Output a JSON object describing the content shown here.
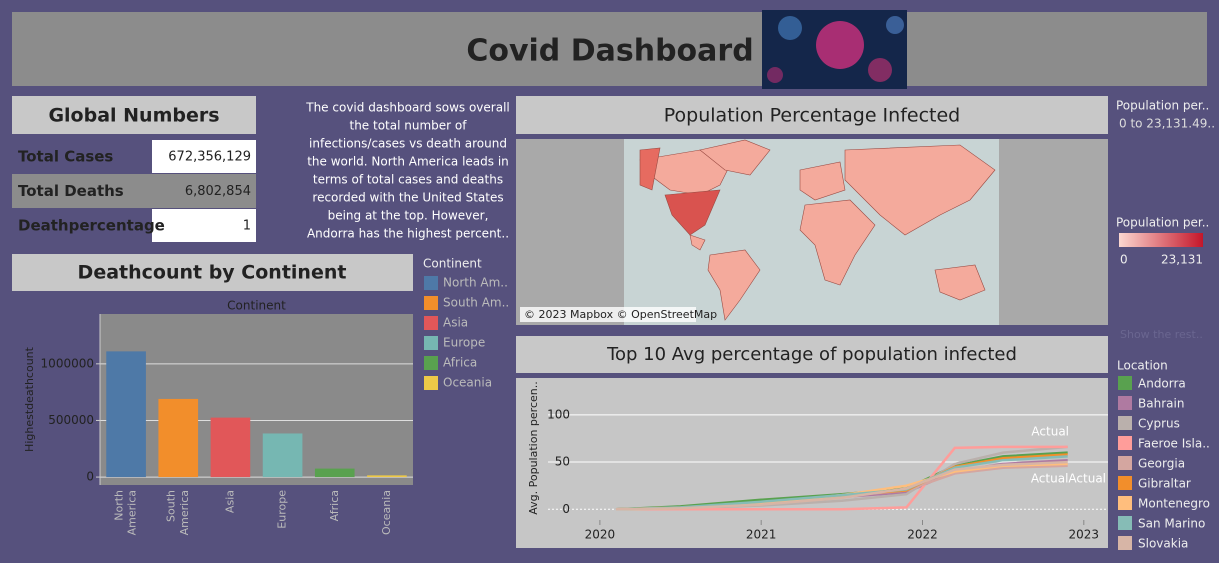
{
  "header": {
    "title": "Covid Dashboard"
  },
  "global_numbers": {
    "title": "Global Numbers",
    "rows": [
      [
        "Total Cases",
        "672,356,129"
      ],
      [
        "Total Deaths",
        "6,802,854"
      ],
      [
        "Deathpercentage",
        "1"
      ]
    ]
  },
  "description": [
    "The covid dashboard sows overall",
    "the total number of",
    "infections/cases vs death around",
    "the world. North America leads in",
    "terms of total cases and deaths",
    "recorded with the United States",
    "being at the top. However,",
    "Andorra has the highest percent.."
  ],
  "map": {
    "title": "Population Percentage Infected",
    "attribution": "© 2023 Mapbox © OpenStreetMap",
    "size_title": "Population per..",
    "size_range": "0 to 23,131.49..",
    "color_title": "Population per..",
    "color_min": "0",
    "color_max": "23,131",
    "more": "Show the rest.."
  },
  "chart_data": [
    {
      "type": "bar",
      "title": "Deathcount by Continent",
      "header": "Continent",
      "ylabel": "Highestdeathcount",
      "categories": [
        "North America",
        "South America",
        "Asia",
        "Europe",
        "Africa",
        "Oceania"
      ],
      "values": [
        1110000,
        690000,
        525000,
        385000,
        75000,
        15000
      ],
      "colors": [
        "#4e79a7",
        "#f28e2b",
        "#e15759",
        "#76b7b2",
        "#59a14f",
        "#edc948"
      ],
      "ylim": [
        -70000,
        1440000
      ],
      "yticks": [
        0,
        500000,
        1000000
      ],
      "grid": true,
      "legend": {
        "title": "Continent",
        "labels": [
          "North Am..",
          "South Am..",
          "Asia",
          "Europe",
          "Africa",
          "Oceania"
        ]
      }
    },
    {
      "type": "line",
      "title": "Top 10 Avg  percentage of population infected",
      "ylabel": "Avg. Population percen..",
      "x": [
        2020.1,
        2020.5,
        2021.0,
        2021.5,
        2021.9,
        2022.2,
        2022.5,
        2022.9
      ],
      "xlim": [
        2019.48,
        2023.15
      ],
      "xticks": [
        2020,
        2021,
        2022,
        2023
      ],
      "ylim": [
        -41,
        139
      ],
      "yticks": [
        0,
        50,
        100
      ],
      "grid": true,
      "annotations": [
        "Actual",
        "ActualActual"
      ],
      "legend_title": "Location",
      "series": [
        {
          "name": "Andorra",
          "color": "#59a14f",
          "values": [
            0,
            3,
            10,
            16,
            22,
            46,
            56,
            60
          ]
        },
        {
          "name": "Bahrain",
          "color": "#af7aa1",
          "values": [
            0,
            1,
            5,
            13,
            18,
            40,
            48,
            52
          ]
        },
        {
          "name": "Cyprus",
          "color": "#bab0ac",
          "values": [
            0,
            1,
            4,
            9,
            16,
            48,
            60,
            66
          ]
        },
        {
          "name": "Faeroe Isla..",
          "color": "#ff9d9a",
          "values": [
            0,
            0,
            0,
            0,
            2,
            65,
            66,
            66
          ]
        },
        {
          "name": "Georgia",
          "color": "#d4a6a0",
          "values": [
            0,
            1,
            6,
            14,
            20,
            38,
            44,
            46
          ]
        },
        {
          "name": "Gibraltar",
          "color": "#f28e2b",
          "values": [
            0,
            2,
            7,
            15,
            20,
            45,
            54,
            58
          ]
        },
        {
          "name": "Montenegro",
          "color": "#ffbe7d",
          "values": [
            0,
            1,
            6,
            15,
            25,
            40,
            46,
            48
          ]
        },
        {
          "name": "San Marino",
          "color": "#86bcb6",
          "values": [
            0,
            2,
            8,
            15,
            21,
            44,
            52,
            56
          ]
        },
        {
          "name": "Slovakia",
          "color": "#d7b5a6",
          "values": [
            0,
            1,
            5,
            12,
            22,
            42,
            47,
            50
          ]
        }
      ]
    }
  ]
}
